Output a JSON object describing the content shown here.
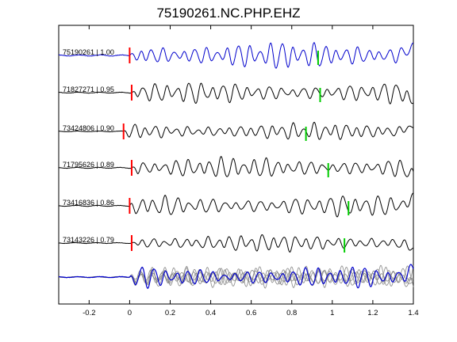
{
  "title": "75190261.NC.PHP.EHZ",
  "chart_data": {
    "type": "line",
    "title": "75190261.NC.PHP.EHZ",
    "xlabel": "",
    "ylabel": "",
    "xlim": [
      -0.35,
      1.4
    ],
    "xticks": [
      -0.2,
      0,
      0.2,
      0.4,
      0.6,
      0.8,
      1,
      1.2,
      1.4
    ],
    "xtick_labels": [
      "-0.2",
      "0",
      "0.2",
      "0.4",
      "0.6",
      "0.8",
      "1",
      "1.2",
      "1.4"
    ],
    "grid": false,
    "legend": "none",
    "series": [
      {
        "name": "75190261 | 1.00",
        "color": "#0000cc",
        "red_pick": 0.0,
        "green_pick": 0.93
      },
      {
        "name": "71827271 | 0.95",
        "color": "#000000",
        "red_pick": 0.01,
        "green_pick": 0.94
      },
      {
        "name": "73424806 | 0.90",
        "color": "#000000",
        "red_pick": -0.03,
        "green_pick": 0.87
      },
      {
        "name": "71795626 | 0.89",
        "color": "#000000",
        "red_pick": 0.01,
        "green_pick": 0.98
      },
      {
        "name": "73416836 | 0.86",
        "color": "#000000",
        "red_pick": 0.0,
        "green_pick": 1.08
      },
      {
        "name": "73143226 | 0.79",
        "color": "#000000",
        "red_pick": 0.01,
        "green_pick": 1.06
      }
    ],
    "stack": {
      "description": "overlay of all traces",
      "colors": [
        "#0000cc",
        "#808080"
      ]
    },
    "pick_colors": {
      "red": "#ff0000",
      "green": "#00cc00"
    }
  }
}
